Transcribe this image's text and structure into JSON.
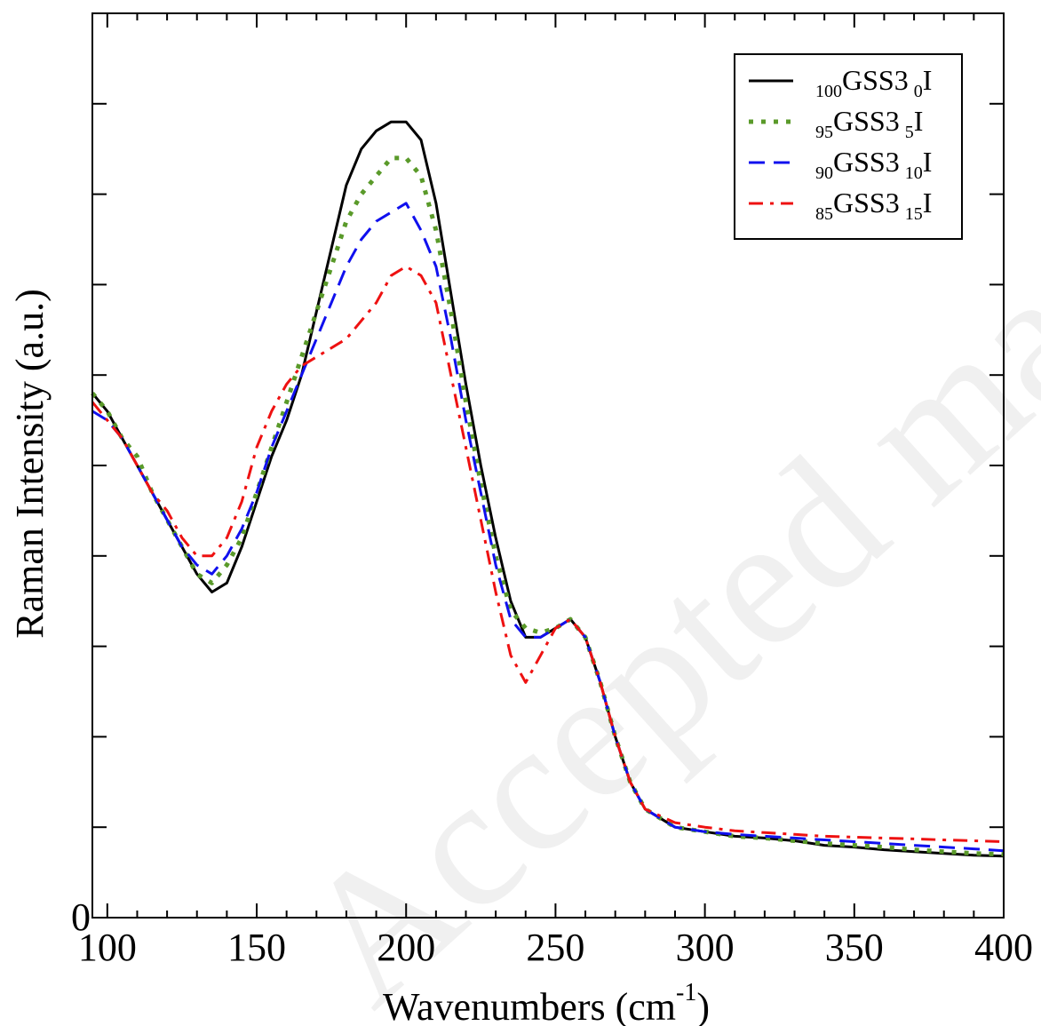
{
  "chart_data": {
    "type": "line",
    "title": "",
    "xlabel": "Wavenumbers (cm",
    "xlabel_sup": "-1",
    "xlabel_close": ")",
    "ylabel": "Raman Intensity (a.u.)",
    "xlim": [
      95,
      400
    ],
    "ylim": [
      0,
      100
    ],
    "x_ticks": [
      100,
      150,
      200,
      250,
      300,
      350,
      400
    ],
    "y_ticks": [
      0
    ],
    "y_minor_ticks": [
      10,
      20,
      30,
      40,
      50,
      60,
      70,
      80,
      90
    ],
    "legend_position": "top-right",
    "grid": false,
    "series": [
      {
        "name": "100GSS3 0I",
        "legend": {
          "pre": "100",
          "main": "GSS3",
          "mid": "0",
          "end": "I"
        },
        "color": "#000000",
        "style": "solid",
        "x": [
          95,
          100,
          105,
          110,
          115,
          120,
          125,
          130,
          135,
          140,
          145,
          150,
          155,
          160,
          165,
          170,
          175,
          180,
          185,
          190,
          195,
          200,
          205,
          210,
          215,
          220,
          225,
          230,
          235,
          240,
          245,
          250,
          255,
          260,
          265,
          270,
          275,
          280,
          290,
          300,
          310,
          320,
          330,
          340,
          350,
          360,
          370,
          380,
          390,
          400
        ],
        "y": [
          58,
          56,
          53,
          50,
          47,
          44,
          41,
          38,
          36,
          37,
          41,
          46,
          51,
          55,
          60,
          67,
          74,
          81,
          85,
          87,
          88,
          88,
          86,
          79,
          69,
          59,
          50,
          42,
          35,
          31,
          31,
          32,
          33,
          31,
          26,
          20,
          15,
          12,
          10,
          9.5,
          9,
          8.8,
          8.5,
          8,
          7.8,
          7.5,
          7.3,
          7.1,
          6.9,
          6.8
        ]
      },
      {
        "name": "95GSS3 5I",
        "legend": {
          "pre": "95",
          "main": "GSS3",
          "mid": "5",
          "end": "I"
        },
        "color": "#5a9a2a",
        "style": "dotted",
        "x": [
          95,
          100,
          105,
          110,
          115,
          120,
          125,
          130,
          135,
          140,
          145,
          150,
          155,
          160,
          165,
          170,
          175,
          180,
          185,
          190,
          195,
          200,
          205,
          210,
          215,
          220,
          225,
          230,
          235,
          240,
          245,
          250,
          255,
          260,
          265,
          270,
          275,
          280,
          290,
          300,
          310,
          320,
          330,
          340,
          350,
          360,
          370,
          380,
          390,
          400
        ],
        "y": [
          58,
          56,
          53,
          51,
          47,
          44,
          41,
          38,
          37,
          39,
          42,
          47,
          52,
          57,
          62,
          67,
          72,
          77,
          80,
          82,
          84,
          84,
          82,
          76,
          67,
          57,
          48,
          40,
          34,
          32,
          31.5,
          32,
          33,
          31,
          26,
          20,
          15,
          12,
          10,
          9.5,
          9,
          8.8,
          8.5,
          8.2,
          8,
          7.8,
          7.5,
          7.3,
          7.1,
          7
        ]
      },
      {
        "name": "90GSS3 10I",
        "legend": {
          "pre": "90",
          "main": "GSS3",
          "mid": "10",
          "end": "I"
        },
        "color": "#1010ee",
        "style": "dashed",
        "x": [
          95,
          100,
          105,
          110,
          115,
          120,
          125,
          130,
          135,
          140,
          145,
          150,
          155,
          160,
          165,
          170,
          175,
          180,
          185,
          190,
          195,
          200,
          205,
          210,
          215,
          220,
          225,
          230,
          235,
          240,
          245,
          250,
          255,
          260,
          265,
          270,
          275,
          280,
          290,
          300,
          310,
          320,
          330,
          340,
          350,
          360,
          370,
          380,
          390,
          400
        ],
        "y": [
          56,
          55,
          53,
          50,
          47,
          44,
          41,
          39,
          38,
          40,
          43,
          47,
          52,
          56,
          60,
          64,
          68,
          72,
          75,
          77,
          78,
          79,
          76,
          72,
          64,
          55,
          47,
          39,
          33,
          31,
          31,
          32,
          33,
          31,
          26,
          20,
          15,
          12,
          10,
          9.5,
          9.2,
          9,
          8.8,
          8.6,
          8.4,
          8.2,
          8,
          7.8,
          7.6,
          7.4
        ]
      },
      {
        "name": "85GSS3 15I",
        "legend": {
          "pre": "85",
          "main": "GSS3",
          "mid": "15",
          "end": "I"
        },
        "color": "#ee1111",
        "style": "dashdot",
        "x": [
          95,
          100,
          105,
          110,
          115,
          120,
          125,
          130,
          135,
          140,
          145,
          150,
          155,
          160,
          165,
          170,
          175,
          180,
          185,
          190,
          195,
          200,
          205,
          210,
          215,
          220,
          225,
          230,
          235,
          240,
          245,
          250,
          255,
          260,
          265,
          270,
          275,
          280,
          290,
          300,
          310,
          320,
          330,
          340,
          350,
          360,
          370,
          380,
          390,
          400
        ],
        "y": [
          57,
          55,
          53,
          50,
          47,
          45,
          42,
          40,
          40,
          42,
          46,
          52,
          56,
          59,
          61,
          62,
          63,
          64,
          66,
          68,
          71,
          72,
          71,
          68,
          60,
          52,
          44,
          36,
          29,
          26,
          29,
          32,
          33,
          31,
          26,
          20,
          15,
          12,
          10.5,
          10,
          9.6,
          9.4,
          9.2,
          9,
          8.9,
          8.8,
          8.7,
          8.6,
          8.5,
          8.4
        ]
      }
    ]
  },
  "watermark": "Accepted manuscript"
}
